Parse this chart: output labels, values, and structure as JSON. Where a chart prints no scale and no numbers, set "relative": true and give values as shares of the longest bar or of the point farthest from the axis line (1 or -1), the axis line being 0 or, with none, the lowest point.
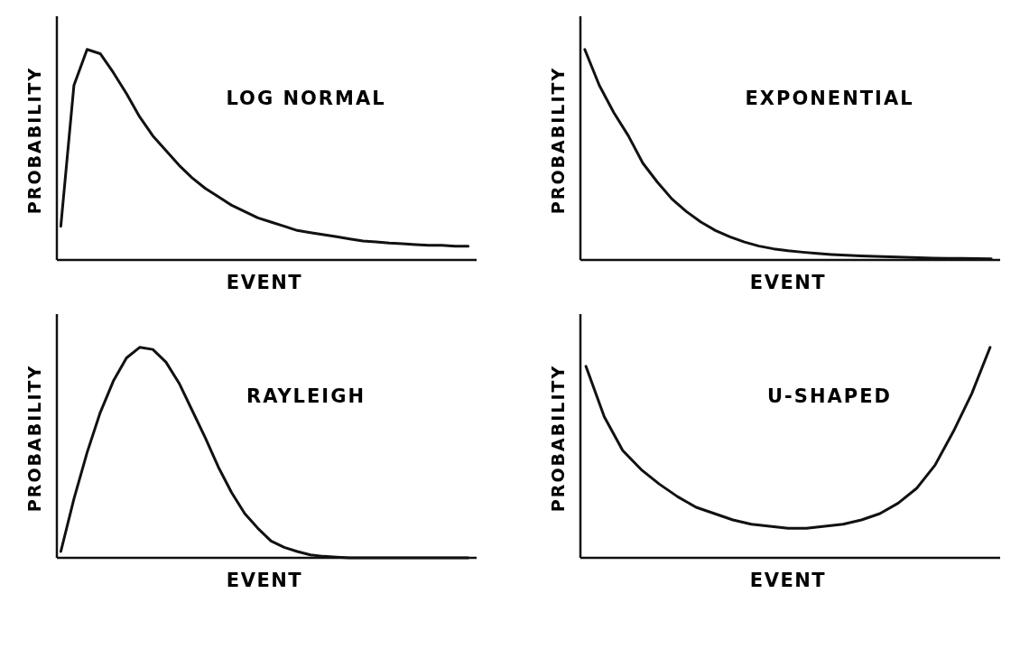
{
  "chart_data": [
    {
      "type": "line",
      "title": "LOG NORMAL",
      "xlabel": "EVENT",
      "ylabel": "PROBABILITY",
      "relative": true,
      "color": "#111111",
      "categories": [
        null,
        null,
        null,
        null,
        null,
        null,
        null,
        null,
        null,
        null,
        null,
        null,
        null,
        null,
        null,
        null,
        null,
        null,
        null,
        null,
        null,
        null,
        null,
        null,
        null,
        null,
        null,
        null,
        null,
        null,
        null,
        null
      ],
      "values": [
        0.16,
        0.83,
        1,
        0.98,
        0.89,
        0.79,
        0.68,
        0.59,
        0.52,
        0.45,
        0.39,
        0.34,
        0.3,
        0.26,
        0.23,
        0.2,
        0.18,
        0.16,
        0.14,
        0.13,
        0.12,
        0.11,
        0.1,
        0.09,
        0.086,
        0.08,
        0.077,
        0.073,
        0.07,
        0.07,
        0.065,
        0.065
      ]
    },
    {
      "type": "line",
      "title": "EXPONENTIAL",
      "xlabel": "EVENT",
      "ylabel": "PROBABILITY",
      "relative": true,
      "color": "#111111",
      "categories": [
        null,
        null,
        null,
        null,
        null,
        null,
        null,
        null,
        null,
        null,
        null,
        null,
        null,
        null,
        null,
        null,
        null,
        null,
        null,
        null,
        null,
        null,
        null,
        null,
        null,
        null,
        null,
        null,
        null
      ],
      "values": [
        1,
        0.83,
        0.7,
        0.59,
        0.46,
        0.37,
        0.29,
        0.23,
        0.18,
        0.14,
        0.11,
        0.085,
        0.066,
        0.053,
        0.044,
        0.037,
        0.031,
        0.026,
        0.022,
        0.019,
        0.017,
        0.015,
        0.013,
        0.011,
        0.009,
        0.008,
        0.007,
        0.006,
        0.005
      ]
    },
    {
      "type": "line",
      "title": "RAYLEIGH",
      "xlabel": "EVENT",
      "ylabel": "PROBABILITY",
      "relative": true,
      "color": "#111111",
      "categories": [
        null,
        null,
        null,
        null,
        null,
        null,
        null,
        null,
        null,
        null,
        null,
        null,
        null,
        null,
        null,
        null,
        null,
        null,
        null,
        null,
        null,
        null,
        null,
        null,
        null,
        null,
        null,
        null,
        null,
        null,
        null,
        null
      ],
      "values": [
        0.03,
        0.28,
        0.5,
        0.69,
        0.84,
        0.95,
        1,
        0.99,
        0.93,
        0.83,
        0.7,
        0.57,
        0.43,
        0.31,
        0.21,
        0.14,
        0.08,
        0.05,
        0.03,
        0.014,
        0.007,
        0.003,
        0,
        0,
        0,
        0,
        0,
        0,
        0,
        0,
        0,
        0
      ]
    },
    {
      "type": "line",
      "title": "U-SHAPED",
      "xlabel": "EVENT",
      "ylabel": "PROBABILITY",
      "relative": true,
      "color": "#111111",
      "categories": [
        null,
        null,
        null,
        null,
        null,
        null,
        null,
        null,
        null,
        null,
        null,
        null,
        null,
        null,
        null,
        null,
        null,
        null,
        null,
        null,
        null,
        null,
        null
      ],
      "values": [
        0.91,
        0.67,
        0.51,
        0.42,
        0.35,
        0.29,
        0.24,
        0.21,
        0.18,
        0.16,
        0.15,
        0.14,
        0.14,
        0.15,
        0.16,
        0.18,
        0.21,
        0.26,
        0.33,
        0.44,
        0.6,
        0.78,
        1
      ]
    }
  ]
}
